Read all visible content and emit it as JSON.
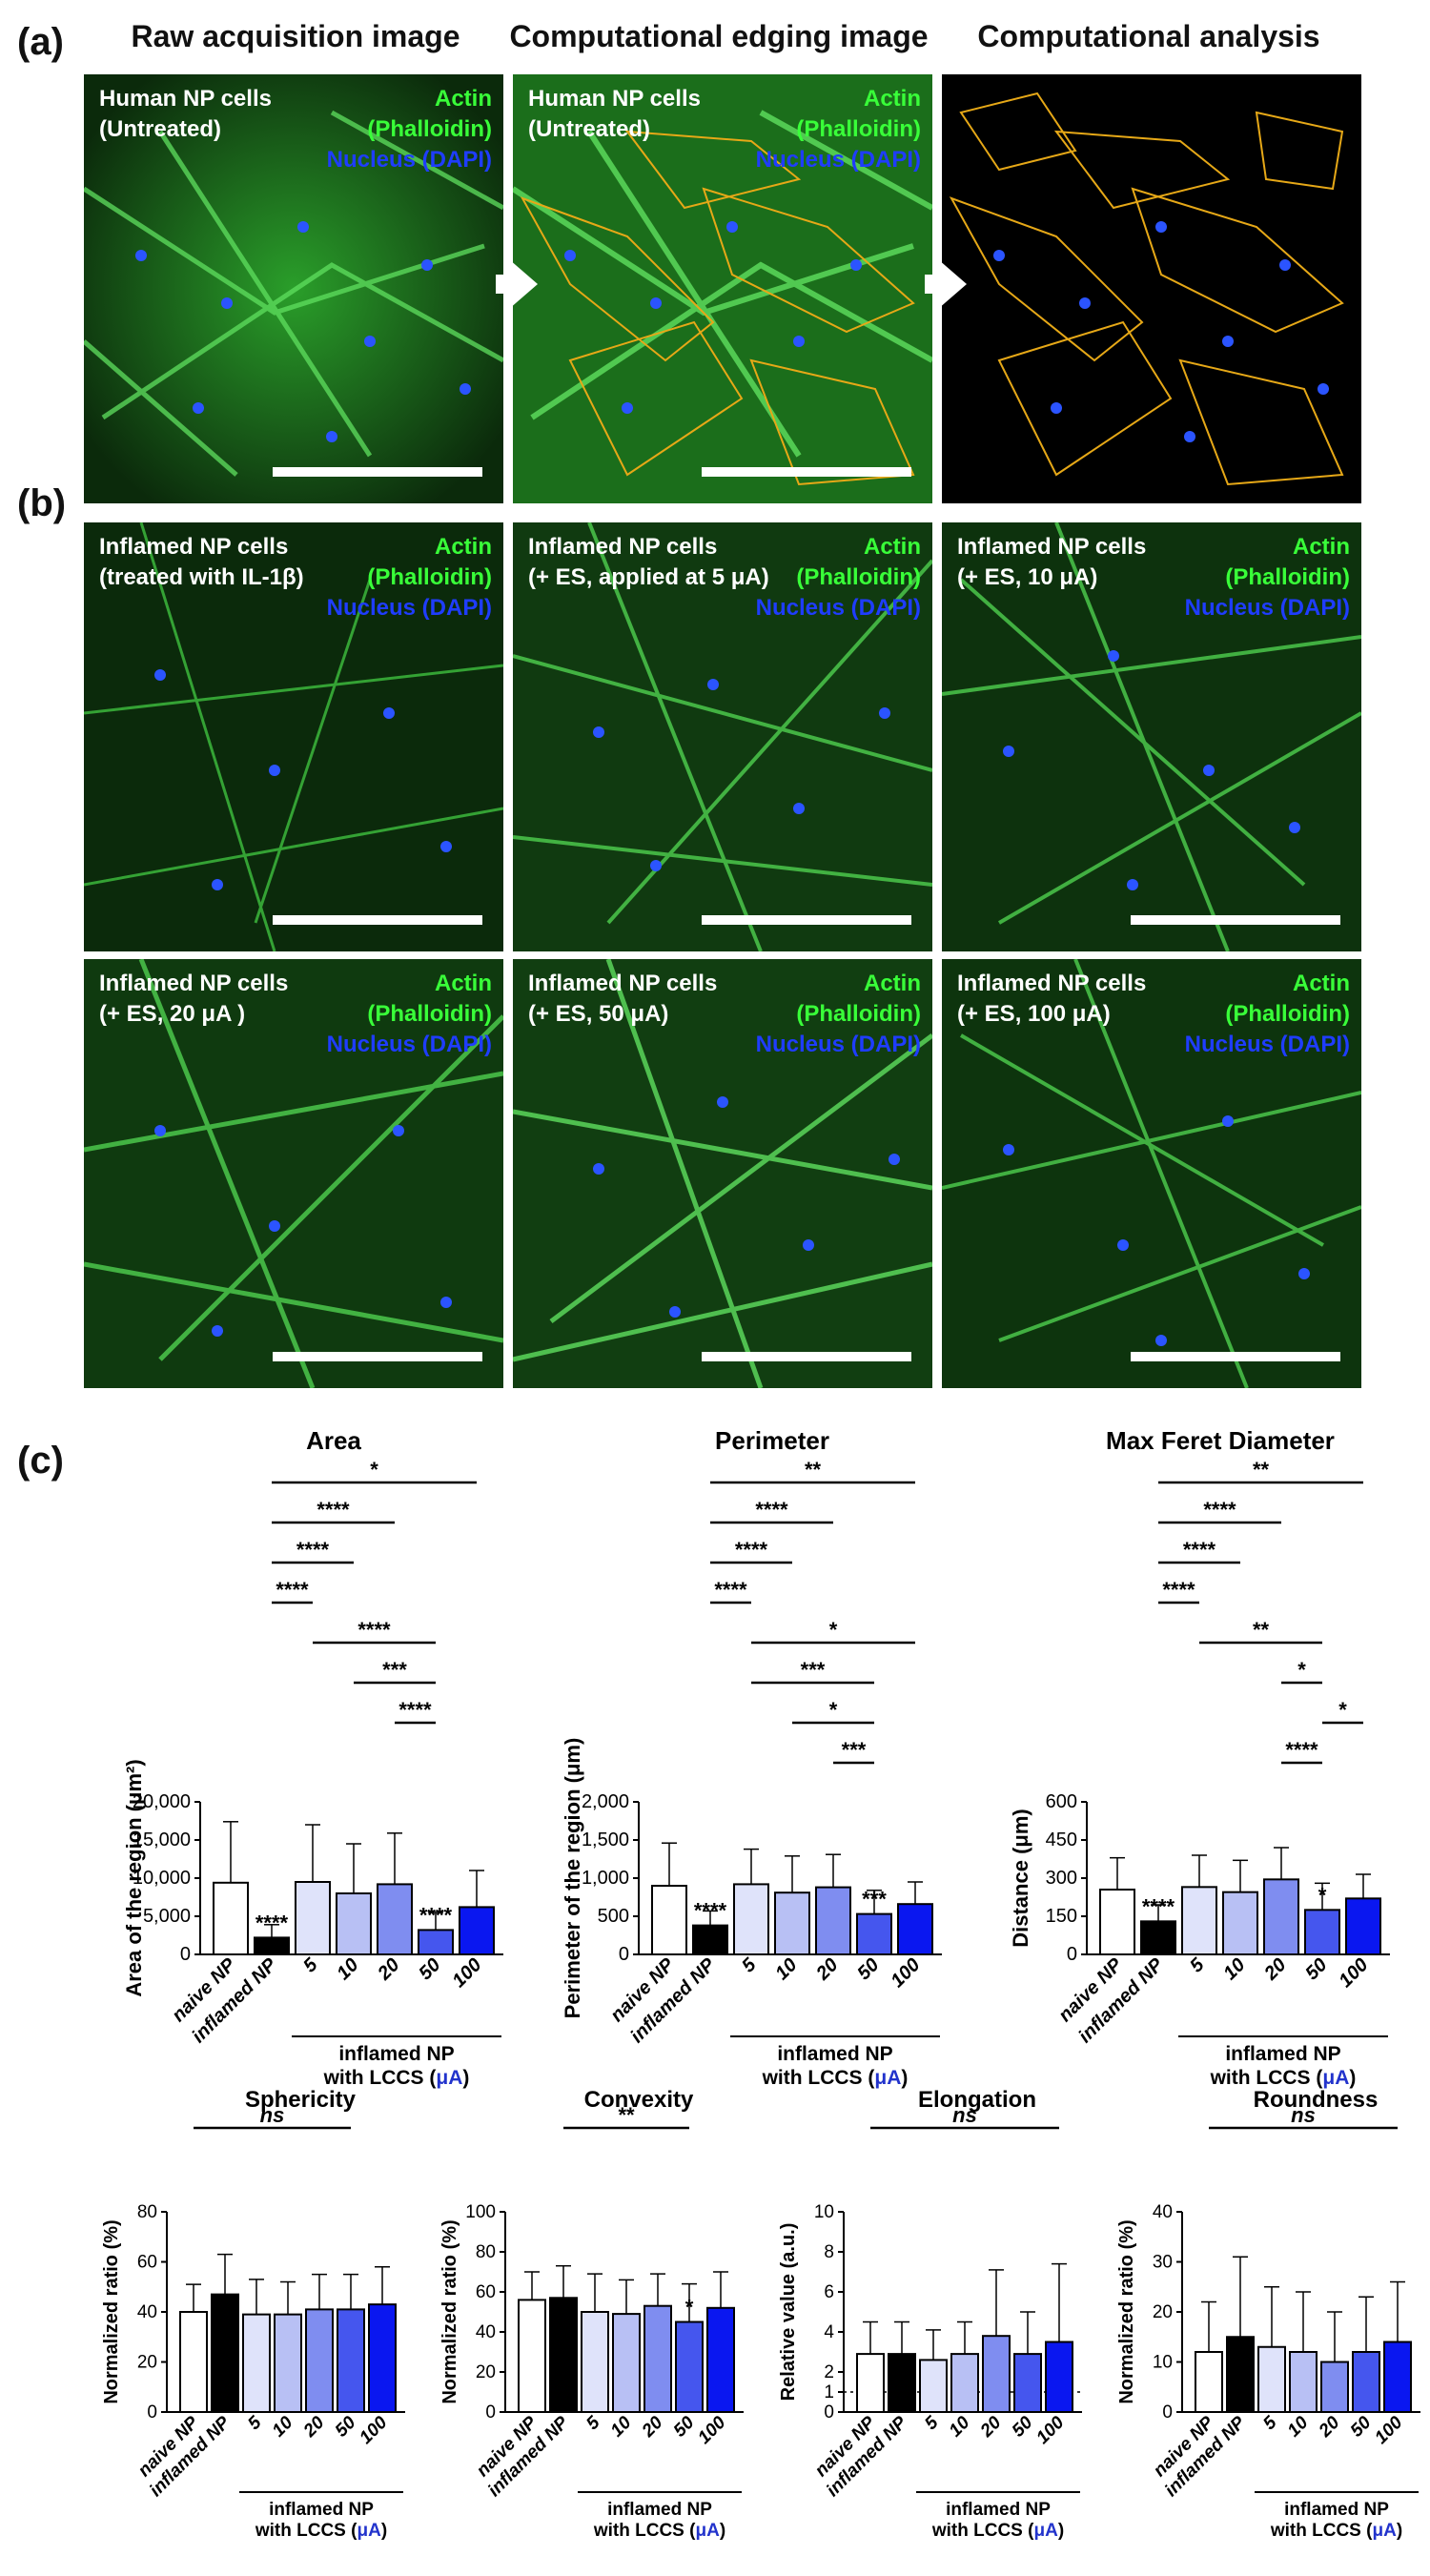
{
  "panel_labels": [
    "(a)",
    "(b)",
    "(c)"
  ],
  "column_titles": [
    "Raw acquisition image",
    "Computational edging image",
    "Computational analysis"
  ],
  "stain_labels": {
    "actin": "Actin",
    "phalloidin": "(Phalloidin)",
    "nucleus": "Nucleus (DAPI)"
  },
  "colors": {
    "actin": "#39ff39",
    "nucleus": "#1f3dff",
    "outline": "#e6a817",
    "accent": "#2233cc"
  },
  "images": {
    "a1": {
      "line1": "Human NP cells",
      "line2": "(Untreated)"
    },
    "a2": {
      "line1": "Human NP cells",
      "line2": "(Untreated)"
    },
    "b1": {
      "line1": "Inflamed NP cells",
      "line2": "(treated with IL-1β)"
    },
    "b2": {
      "line1": "Inflamed NP cells",
      "line2": "(+ ES, applied at 5 μA)"
    },
    "b3": {
      "line1": "Inflamed NP cells",
      "line2": "(+ ES, 10 μA)"
    },
    "b4": {
      "line1": "Inflamed NP cells",
      "line2": "(+ ES, 20 μA )"
    },
    "b5": {
      "line1": "Inflamed NP cells",
      "line2": "(+ ES, 50 μA)"
    },
    "b6": {
      "line1": "Inflamed NP cells",
      "line2": "(+ ES, 100 μA)"
    }
  },
  "group_label": {
    "line1": "inflamed NP",
    "line2_prefix": "with LCCS (",
    "unit": "μA",
    "line2_suffix": ")"
  },
  "chart_data": [
    {
      "type": "bar",
      "title": "Area",
      "ylabel": "Area of the region (μm²)",
      "ylim": [
        0,
        20000
      ],
      "yticks": [
        "0",
        "5,000",
        "10,000",
        "15,000",
        "20,000"
      ],
      "categories": [
        "naive NP",
        "inflamed NP",
        "5",
        "10",
        "20",
        "50",
        "100"
      ],
      "values": [
        9400,
        2200,
        9500,
        8000,
        9200,
        3200,
        6200
      ],
      "errors": [
        8000,
        1700,
        7500,
        6500,
        6700,
        2300,
        4800
      ],
      "sig_labels": [
        "",
        "****",
        "",
        "",
        "",
        "****",
        ""
      ],
      "brackets": [
        {
          "from": 1,
          "to": 6,
          "label": "*"
        },
        {
          "from": 1,
          "to": 4,
          "label": "****"
        },
        {
          "from": 1,
          "to": 3,
          "label": "****"
        },
        {
          "from": 1,
          "to": 2,
          "label": "****"
        },
        {
          "from": 2,
          "to": 5,
          "label": "****"
        },
        {
          "from": 3,
          "to": 5,
          "label": "***"
        },
        {
          "from": 4,
          "to": 5,
          "label": "****"
        }
      ]
    },
    {
      "type": "bar",
      "title": "Perimeter",
      "ylabel": "Perimeter of the region (μm)",
      "ylim": [
        0,
        2000
      ],
      "yticks": [
        "0",
        "500",
        "1,000",
        "1,500",
        "2,000"
      ],
      "categories": [
        "naive NP",
        "inflamed NP",
        "5",
        "10",
        "20",
        "50",
        "100"
      ],
      "values": [
        900,
        380,
        920,
        810,
        880,
        530,
        660
      ],
      "errors": [
        560,
        190,
        460,
        480,
        430,
        310,
        290
      ],
      "sig_labels": [
        "",
        "****",
        "",
        "",
        "",
        "***",
        ""
      ],
      "brackets": [
        {
          "from": 1,
          "to": 6,
          "label": "**"
        },
        {
          "from": 1,
          "to": 4,
          "label": "****"
        },
        {
          "from": 1,
          "to": 3,
          "label": "****"
        },
        {
          "from": 1,
          "to": 2,
          "label": "****"
        },
        {
          "from": 2,
          "to": 6,
          "label": "*"
        },
        {
          "from": 2,
          "to": 5,
          "label": "***"
        },
        {
          "from": 3,
          "to": 5,
          "label": "*"
        },
        {
          "from": 4,
          "to": 5,
          "label": "***"
        }
      ]
    },
    {
      "type": "bar",
      "title": "Max Feret Diameter",
      "ylabel": "Distance (μm)",
      "ylim": [
        0,
        600
      ],
      "yticks": [
        "0",
        "150",
        "300",
        "450",
        "600"
      ],
      "categories": [
        "naive NP",
        "inflamed NP",
        "5",
        "10",
        "20",
        "50",
        "100"
      ],
      "values": [
        255,
        130,
        265,
        245,
        295,
        175,
        220
      ],
      "errors": [
        125,
        65,
        125,
        125,
        125,
        105,
        95
      ],
      "sig_labels": [
        "",
        "****",
        "",
        "",
        "",
        "*",
        ""
      ],
      "brackets": [
        {
          "from": 1,
          "to": 6,
          "label": "**"
        },
        {
          "from": 1,
          "to": 4,
          "label": "****"
        },
        {
          "from": 1,
          "to": 3,
          "label": "****"
        },
        {
          "from": 1,
          "to": 2,
          "label": "****"
        },
        {
          "from": 2,
          "to": 5,
          "label": "**"
        },
        {
          "from": 4,
          "to": 5,
          "label": "*"
        },
        {
          "from": 5,
          "to": 6,
          "label": "*"
        },
        {
          "from": 4,
          "to": 5,
          "label": "****"
        }
      ]
    },
    {
      "type": "bar",
      "title": "Sphericity",
      "ylabel": "Normalized ratio (%)",
      "ylim": [
        0,
        80
      ],
      "yticks": [
        "0",
        "20",
        "40",
        "60",
        "80"
      ],
      "categories": [
        "naive NP",
        "inflamed NP",
        "5",
        "10",
        "20",
        "50",
        "100"
      ],
      "values": [
        40,
        47,
        39,
        39,
        41,
        41,
        43
      ],
      "errors": [
        11,
        16,
        14,
        13,
        14,
        14,
        15
      ],
      "sig_labels": [
        "",
        "",
        "",
        "",
        "",
        "",
        ""
      ],
      "brackets": [
        {
          "from": 0,
          "to": 5,
          "label": "ns",
          "italic": true
        }
      ]
    },
    {
      "type": "bar",
      "title": "Convexity",
      "ylabel": "Normalized ratio (%)",
      "ylim": [
        0,
        100
      ],
      "yticks": [
        "0",
        "20",
        "40",
        "60",
        "80",
        "100"
      ],
      "categories": [
        "naive NP",
        "inflamed NP",
        "5",
        "10",
        "20",
        "50",
        "100"
      ],
      "values": [
        56,
        57,
        50,
        49,
        53,
        45,
        52
      ],
      "errors": [
        14,
        16,
        19,
        17,
        16,
        19,
        18
      ],
      "sig_labels": [
        "",
        "",
        "",
        "",
        "",
        "*",
        ""
      ],
      "brackets": [
        {
          "from": 1,
          "to": 5,
          "label": "**"
        }
      ]
    },
    {
      "type": "bar",
      "title": "Elongation",
      "ylabel": "Relative value (a.u.)",
      "ylim": [
        0,
        10
      ],
      "yticks": [
        "0",
        "1",
        "2",
        "4",
        "6",
        "8",
        "10"
      ],
      "ytick_values": [
        0,
        1,
        2,
        4,
        6,
        8,
        10
      ],
      "dotted_line": 1,
      "categories": [
        "naive NP",
        "inflamed NP",
        "5",
        "10",
        "20",
        "50",
        "100"
      ],
      "values": [
        2.9,
        2.9,
        2.6,
        2.9,
        3.8,
        2.9,
        3.5
      ],
      "errors": [
        1.6,
        1.6,
        1.5,
        1.6,
        3.3,
        2.1,
        3.9
      ],
      "sig_labels": [
        "",
        "",
        "",
        "",
        "",
        "",
        ""
      ],
      "brackets": [
        {
          "from": 0,
          "to": 6,
          "label": "ns",
          "italic": true
        }
      ]
    },
    {
      "type": "bar",
      "title": "Roundness",
      "ylabel": "Normalized ratio (%)",
      "ylim": [
        0,
        40
      ],
      "yticks": [
        "0",
        "10",
        "20",
        "30",
        "40"
      ],
      "categories": [
        "naive NP",
        "inflamed NP",
        "5",
        "10",
        "20",
        "50",
        "100"
      ],
      "values": [
        12,
        15,
        13,
        12,
        10,
        12,
        14
      ],
      "errors": [
        10,
        16,
        12,
        12,
        10,
        11,
        12
      ],
      "sig_labels": [
        "",
        "",
        "",
        "",
        "",
        "",
        ""
      ],
      "brackets": [
        {
          "from": 0,
          "to": 6,
          "label": "ns",
          "italic": true
        }
      ]
    }
  ],
  "bar_colors": [
    "#ffffff",
    "#000000",
    "#dfe3fa",
    "#b8c0f4",
    "#7f8df0",
    "#4556ee",
    "#0a17f0"
  ]
}
